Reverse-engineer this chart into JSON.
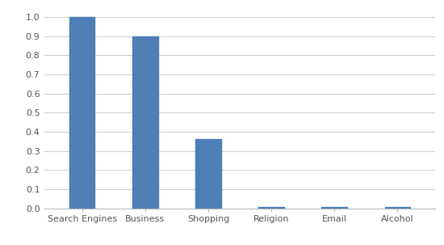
{
  "categories": [
    "Search Engines",
    "Business",
    "Shopping",
    "Religion",
    "Email",
    "Alcohol"
  ],
  "values": [
    1.0,
    0.9,
    0.36,
    0.005,
    0.005,
    0.005
  ],
  "bar_color": "#4d7eb5",
  "ylim": [
    0.0,
    1.05
  ],
  "yticks": [
    0.0,
    0.1,
    0.2,
    0.3,
    0.4,
    0.5,
    0.6,
    0.7,
    0.8,
    0.9,
    1.0
  ],
  "background_color": "#ffffff",
  "grid_color": "#d0d0d0",
  "bar_width": 0.4,
  "tick_label_fontsize": 8,
  "axis_label_color": "#555555",
  "figsize": [
    5.5,
    3.03
  ],
  "dpi": 100
}
